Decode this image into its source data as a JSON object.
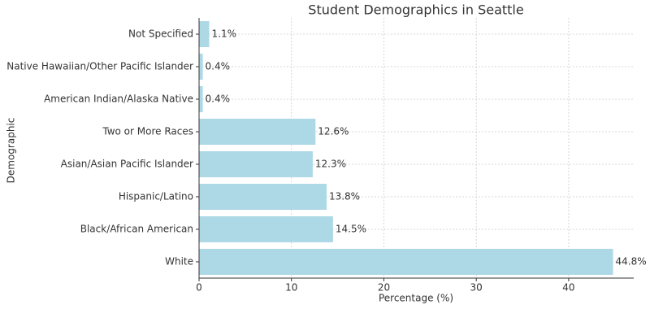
{
  "chart_data": {
    "type": "barh",
    "title": "Student Demographics in Seattle",
    "x_label": "Percentage (%)",
    "y_label": "Demographic",
    "categories": [
      "White",
      "Black/African American",
      "Hispanic/Latino",
      "Asian/Asian Pacific Islander",
      "Two or More Races",
      "American Indian/Alaska Native",
      "Native Hawaiian/Other Pacific Islander",
      "Not Specified"
    ],
    "values": [
      44.8,
      14.5,
      13.8,
      12.3,
      12.6,
      0.4,
      0.4,
      1.1
    ],
    "value_labels": [
      "44.8%",
      "14.5%",
      "13.8%",
      "12.3%",
      "12.6%",
      "0.4%",
      "0.4%",
      "1.1%"
    ],
    "color": "#add8e6",
    "xlim": [
      0,
      47.04
    ],
    "xticks": [
      0,
      10,
      20,
      30,
      40
    ],
    "grid": true
  }
}
